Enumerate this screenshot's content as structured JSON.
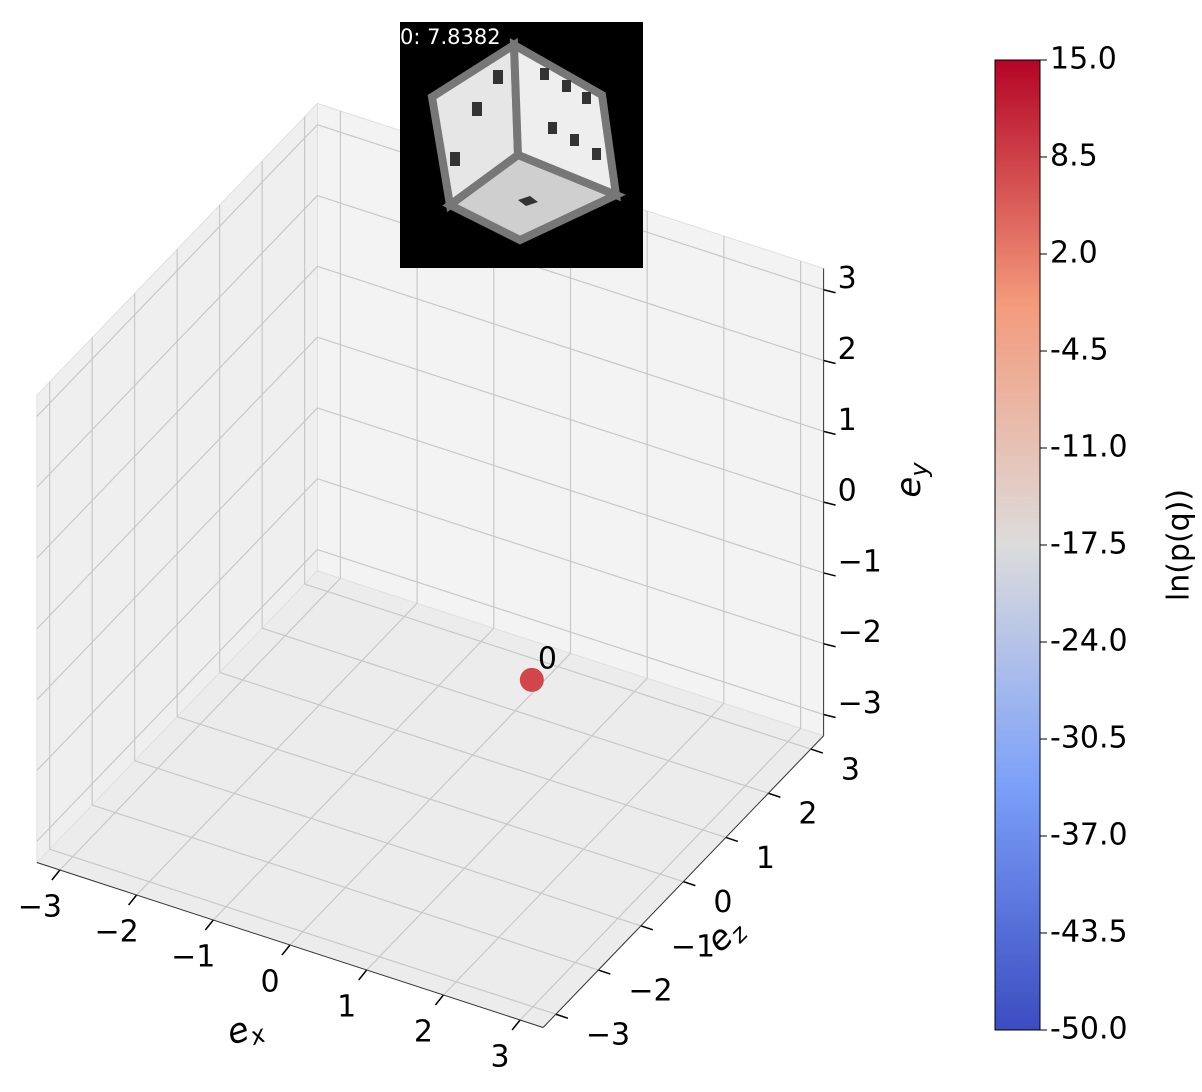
{
  "chart_data": {
    "type": "scatter3d",
    "inset_label": "0: 7.8382",
    "xlabel": {
      "text": "e",
      "subscript": "x"
    },
    "ylabel": {
      "text": "e",
      "subscript": "y"
    },
    "zlabel": {
      "text": "e",
      "subscript": "z"
    },
    "xlim": [
      -3.3,
      3.3
    ],
    "ylim": [
      -3.3,
      3.3
    ],
    "zlim": [
      -3.3,
      3.3
    ],
    "xticks": [
      {
        "value": -3,
        "label": "−3"
      },
      {
        "value": -2,
        "label": "−2"
      },
      {
        "value": -1,
        "label": "−1"
      },
      0,
      1,
      2,
      3
    ],
    "yticks": [
      {
        "value": -3,
        "label": "−3"
      },
      {
        "value": -2,
        "label": "−2"
      },
      {
        "value": -1,
        "label": "−1"
      },
      0,
      1,
      2,
      3
    ],
    "zticks": [
      {
        "value": -3,
        "label": "−3"
      },
      {
        "value": -2,
        "label": "−2"
      },
      {
        "value": -1,
        "label": "−1"
      },
      0,
      1,
      2,
      3
    ],
    "grid": true,
    "points": [
      {
        "label": "0",
        "x": 2.1,
        "y": 0,
        "z": -1.4,
        "value": 7.8382
      }
    ],
    "colormap": "coolwarm",
    "colorbar_label": "ln(p(q))",
    "clim": [
      -50,
      15
    ],
    "cticks": [
      {
        "value": 15,
        "label": "15.0"
      },
      {
        "value": 8.5,
        "label": "8.5"
      },
      {
        "value": 2,
        "label": "2.0"
      },
      -4.5,
      {
        "value": -11,
        "label": "-11.0"
      },
      -17.5,
      {
        "value": -24,
        "label": "-24.0"
      },
      -30.5,
      {
        "value": -37,
        "label": "-37.0"
      },
      -43.5,
      {
        "value": -50,
        "label": "-50.0"
      }
    ]
  }
}
